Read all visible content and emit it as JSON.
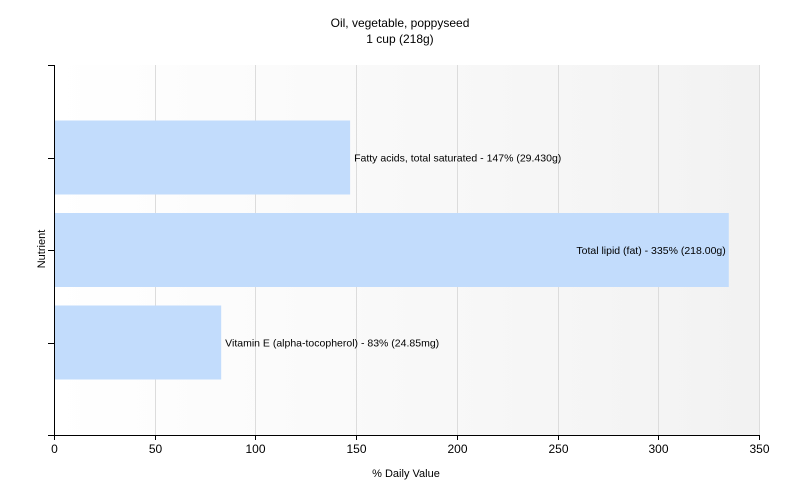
{
  "chart_data": {
    "type": "bar",
    "orientation": "horizontal",
    "title": "Oil, vegetable, poppyseed",
    "subtitle": "1 cup (218g)",
    "xlabel": "% Daily Value",
    "ylabel": "Nutrient",
    "xlim": [
      0,
      350
    ],
    "xticks": [
      0,
      50,
      100,
      150,
      200,
      250,
      300,
      350
    ],
    "grid": true,
    "legend": "none",
    "bar_color": "#c2dcfc",
    "categories": [
      "Fatty acids, total saturated",
      "Total lipid (fat)",
      "Vitamin E (alpha-tocopherol)"
    ],
    "values": [
      147,
      335,
      83
    ],
    "data_labels": [
      "Fatty acids, total saturated - 147% (29.430g)",
      "Total lipid (fat) - 335% (218.00g)",
      "Vitamin E (alpha-tocopherol) - 83% (24.85mg)"
    ]
  }
}
